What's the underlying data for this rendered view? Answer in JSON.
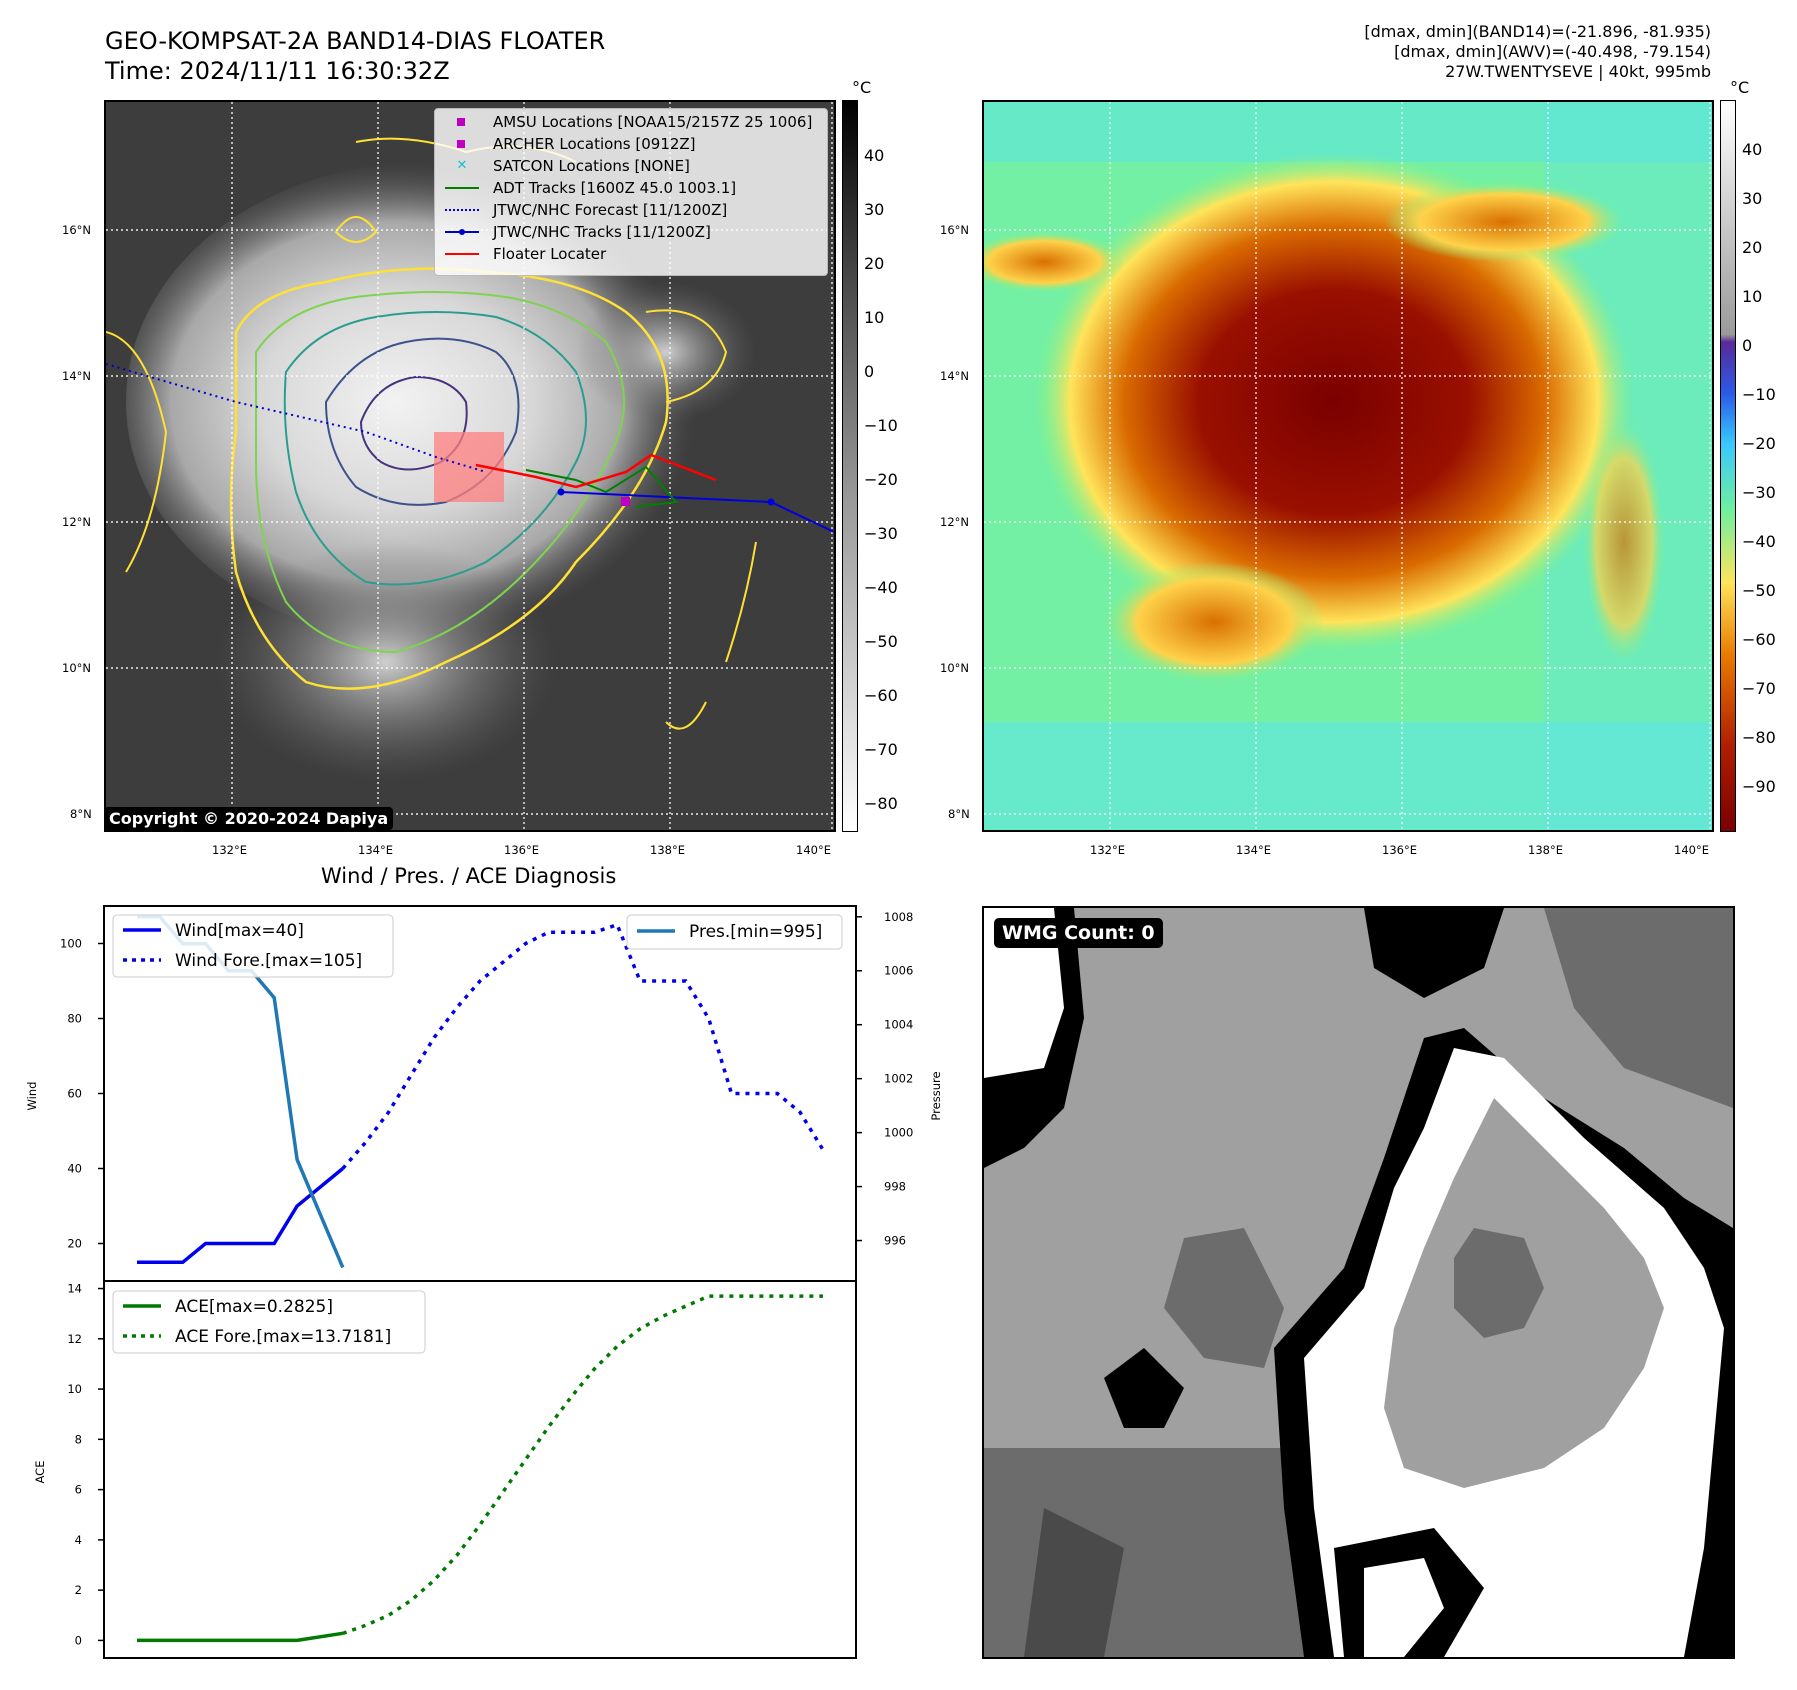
{
  "header": {
    "title_line1": "GEO-KOMPSAT-2A BAND14-DIAS FLOATER",
    "title_line2": "Time: 2024/11/11 16:30:32Z",
    "right_line1": "[dmax, dmin](BAND14)=(-21.896, -81.935)",
    "right_line2": "[dmax, dmin](AWV)=(-40.498, -79.154)",
    "right_line3": "27W.TWENTYSEVE | 40kt, 995mb"
  },
  "map": {
    "lat_ticks": [
      "16°N",
      "14°N",
      "12°N",
      "10°N",
      "8°N"
    ],
    "lon_ticks": [
      "132°E",
      "134°E",
      "136°E",
      "138°E",
      "140°E"
    ],
    "copyright": "Copyright © 2020-2024 Dapiya",
    "legend": [
      {
        "label": "AMSU Locations [NOAA15/2157Z 25 1006]",
        "color": "#c000c0",
        "marker": "square"
      },
      {
        "label": "ARCHER Locations [0912Z]",
        "color": "#c000c0",
        "marker": "square"
      },
      {
        "label": "SATCON Locations [NONE]",
        "color": "#17becf",
        "marker": "x"
      },
      {
        "label": "ADT Tracks [1600Z 45.0 1003.1]",
        "color": "#008000",
        "marker": "line"
      },
      {
        "label": "JTWC/NHC Forecast [11/1200Z]",
        "color": "#0000cc",
        "marker": "dotted"
      },
      {
        "label": "JTWC/NHC Tracks [11/1200Z]",
        "color": "#0000cc",
        "marker": "line-dot"
      },
      {
        "label": "Floater Locater",
        "color": "#ff0000",
        "marker": "line"
      }
    ]
  },
  "colorbar_left": {
    "unit": "°C",
    "ticks": [
      "40",
      "30",
      "20",
      "10",
      "0",
      "−10",
      "−20",
      "−30",
      "−40",
      "−50",
      "−60",
      "−70",
      "−80"
    ]
  },
  "colorbar_right": {
    "unit": "°C",
    "ticks": [
      "40",
      "30",
      "20",
      "10",
      "0",
      "−10",
      "−20",
      "−30",
      "−40",
      "−50",
      "−60",
      "−70",
      "−80",
      "−90"
    ]
  },
  "diagnosis_title": "Wind / Pres. / ACE Diagnosis",
  "wmg_label": "WMG Count: 0",
  "colors": {
    "wind": "#0000ee",
    "pressure": "#1f77b4",
    "ace": "#007a00"
  },
  "chart_data": [
    {
      "type": "line",
      "title": "Wind / Pres. / ACE Diagnosis",
      "ylabel": "Wind",
      "y2label": "Pressure",
      "ylim": [
        10,
        110
      ],
      "y2lim": [
        994.5,
        1008.4
      ],
      "yticks": [
        "100",
        "80",
        "60",
        "40",
        "20"
      ],
      "y2ticks": [
        "1008",
        "1006",
        "1004",
        "1002",
        "1000",
        "998",
        "996"
      ],
      "x": [
        0,
        1,
        2,
        3,
        4,
        5,
        6,
        7,
        8,
        9,
        10,
        11,
        12,
        13,
        14,
        15,
        16,
        17,
        18,
        19,
        20,
        21,
        22,
        23,
        24,
        25,
        26,
        27,
        28,
        29,
        30
      ],
      "series": [
        {
          "name": "Wind[max=40]",
          "axis": "left",
          "style": "solid",
          "x": [
            0,
            2,
            3,
            6,
            7,
            9
          ],
          "values": [
            15,
            15,
            20,
            20,
            30,
            40
          ]
        },
        {
          "name": "Wind Fore.[max=105]",
          "axis": "left",
          "style": "dotted",
          "x": [
            9,
            10,
            11,
            12,
            13,
            14,
            15,
            16,
            17,
            18,
            19,
            20,
            21,
            22,
            23,
            24,
            25,
            26,
            27,
            28,
            29,
            30
          ],
          "values": [
            40,
            47,
            55,
            65,
            75,
            83,
            90,
            95,
            100,
            103,
            103,
            103,
            105,
            90,
            90,
            90,
            80,
            60,
            60,
            60,
            55,
            45
          ]
        },
        {
          "name": "Pres.[min=995]",
          "axis": "right",
          "style": "solid",
          "x": [
            0,
            1,
            2,
            3,
            4,
            5,
            6,
            7,
            8,
            9
          ],
          "values": [
            1008,
            1008,
            1007,
            1007,
            1006,
            1006,
            1005,
            999,
            997,
            995
          ]
        }
      ]
    },
    {
      "type": "line",
      "ylabel": "ACE",
      "ylim": [
        -0.7,
        14.3
      ],
      "yticks": [
        "14",
        "12",
        "10",
        "8",
        "6",
        "4",
        "2",
        "0"
      ],
      "series": [
        {
          "name": "ACE[max=0.2825]",
          "style": "solid",
          "x": [
            0,
            3,
            6,
            7,
            9
          ],
          "values": [
            0,
            0,
            0,
            0,
            0.2825
          ]
        },
        {
          "name": "ACE Fore.[max=13.7181]",
          "style": "dotted",
          "x": [
            9,
            10,
            11,
            12,
            13,
            14,
            15,
            16,
            17,
            18,
            19,
            20,
            21,
            22,
            23,
            24,
            25,
            26,
            27,
            28,
            29,
            30
          ],
          "values": [
            0.28,
            0.6,
            1.0,
            1.6,
            2.4,
            3.4,
            4.6,
            5.9,
            7.2,
            8.5,
            9.7,
            10.8,
            11.7,
            12.4,
            12.9,
            13.3,
            13.7,
            13.7,
            13.7,
            13.7,
            13.7,
            13.7
          ]
        }
      ]
    }
  ]
}
